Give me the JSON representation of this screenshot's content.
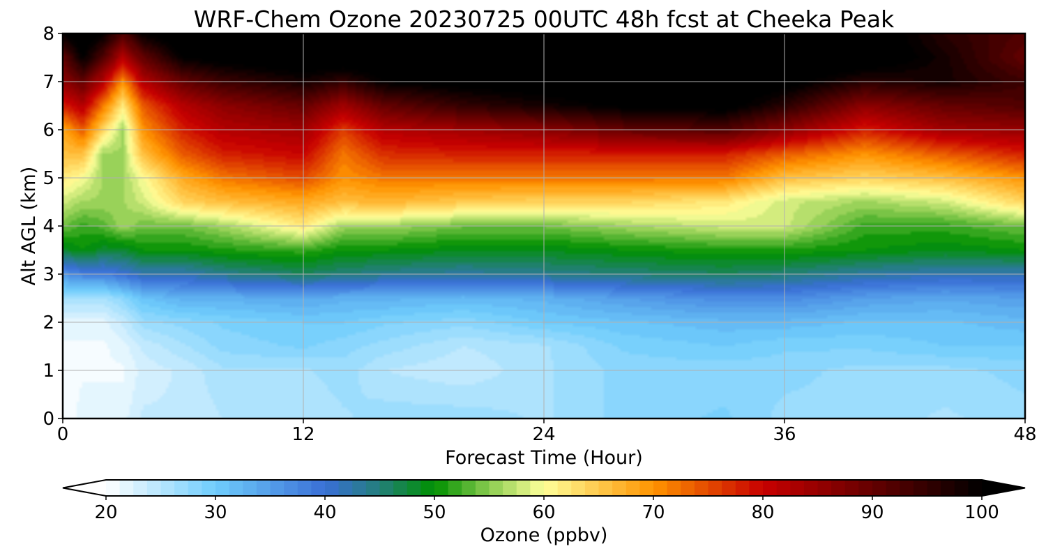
{
  "chart_data": {
    "type": "heatmap",
    "title": "WRF-Chem Ozone  20230725 00UTC 48h fcst at Cheeka Peak",
    "xlabel": "Forecast Time (Hour)",
    "ylabel": "Alt AGL (km)",
    "xlim": [
      0,
      48
    ],
    "ylim": [
      0,
      8
    ],
    "x_ticks": [
      0,
      12,
      24,
      36,
      48
    ],
    "y_ticks": [
      0,
      1,
      2,
      3,
      4,
      5,
      6,
      7,
      8
    ],
    "grid": true,
    "x": [
      0,
      1,
      2,
      3,
      4,
      6,
      8,
      12,
      14,
      16,
      20,
      24,
      28,
      33,
      36,
      40,
      44,
      48
    ],
    "altitudes_km": [
      0,
      1,
      1.5,
      2,
      2.5,
      3,
      3.5,
      4,
      4.5,
      5,
      5.5,
      6,
      6.5,
      7,
      7.5,
      8
    ],
    "z": [
      [
        20,
        22,
        22,
        22,
        24,
        24,
        25,
        25,
        26,
        27,
        27,
        26,
        28,
        29,
        27,
        27,
        26,
        27
      ],
      [
        20,
        21,
        21,
        21,
        23,
        24,
        26,
        26,
        27,
        25,
        24,
        26,
        28,
        28,
        28,
        27,
        27,
        28
      ],
      [
        21,
        21,
        21,
        22,
        24,
        26,
        28,
        29,
        28,
        27,
        25,
        26,
        29,
        30,
        29,
        29,
        30,
        30
      ],
      [
        22,
        22,
        22,
        24,
        27,
        28,
        29,
        30,
        30,
        29,
        28,
        30,
        31,
        32,
        32,
        31,
        31,
        32
      ],
      [
        26,
        26,
        26,
        28,
        31,
        33,
        33,
        34,
        33,
        33,
        32,
        33,
        35,
        37,
        37,
        35,
        34,
        35
      ],
      [
        36,
        38,
        38,
        40,
        42,
        42,
        44,
        46,
        45,
        44,
        43,
        44,
        45,
        46,
        45,
        43,
        42,
        42
      ],
      [
        48,
        50,
        48,
        48,
        50,
        50,
        51,
        52,
        50,
        50,
        49,
        49,
        50,
        51,
        51,
        50,
        49,
        50
      ],
      [
        54,
        52,
        53,
        56,
        54,
        54,
        56,
        62,
        56,
        56,
        54,
        54,
        56,
        58,
        58,
        52,
        52,
        54
      ],
      [
        58,
        56,
        56,
        56,
        58,
        64,
        66,
        68,
        66,
        67,
        65,
        64,
        64,
        62,
        58,
        56,
        58,
        64
      ],
      [
        62,
        60,
        56,
        56,
        60,
        68,
        72,
        75,
        70,
        72,
        72,
        72,
        72,
        72,
        66,
        64,
        66,
        70
      ],
      [
        66,
        66,
        56,
        56,
        66,
        74,
        78,
        80,
        72,
        77,
        78,
        78,
        78,
        78,
        74,
        70,
        74,
        78
      ],
      [
        68,
        74,
        64,
        56,
        70,
        78,
        82,
        84,
        76,
        82,
        84,
        86,
        90,
        92,
        86,
        78,
        84,
        85
      ],
      [
        78,
        82,
        72,
        62,
        74,
        82,
        86,
        90,
        84,
        90,
        95,
        98,
        101,
        102,
        96,
        86,
        90,
        92
      ],
      [
        86,
        90,
        82,
        70,
        82,
        90,
        94,
        98,
        95,
        100,
        102,
        103,
        104,
        104,
        102,
        96,
        98,
        94
      ],
      [
        90,
        100,
        92,
        82,
        90,
        100,
        102,
        104,
        104,
        104,
        104,
        104,
        105,
        105,
        105,
        104,
        98,
        90
      ],
      [
        100,
        104,
        100,
        92,
        100,
        104,
        105,
        105,
        105,
        105,
        105,
        105,
        105,
        105,
        105,
        104,
        96,
        92
      ]
    ],
    "colorbar": {
      "label": "Ozone  (ppbv)",
      "min": 20,
      "max": 100,
      "extend": "both",
      "ticks": [
        20,
        30,
        40,
        50,
        60,
        70,
        80,
        90,
        100
      ],
      "color_stops": [
        {
          "value": 20,
          "color": "#ffffff"
        },
        {
          "value": 30,
          "color": "#6fcdfc"
        },
        {
          "value": 40,
          "color": "#3a6fd6"
        },
        {
          "value": 45,
          "color": "#237f7a"
        },
        {
          "value": 50,
          "color": "#009000"
        },
        {
          "value": 55,
          "color": "#8acb50"
        },
        {
          "value": 60,
          "color": "#ffff9a"
        },
        {
          "value": 70,
          "color": "#ff9400"
        },
        {
          "value": 80,
          "color": "#c80000"
        },
        {
          "value": 90,
          "color": "#640000"
        },
        {
          "value": 100,
          "color": "#000000"
        }
      ]
    }
  }
}
